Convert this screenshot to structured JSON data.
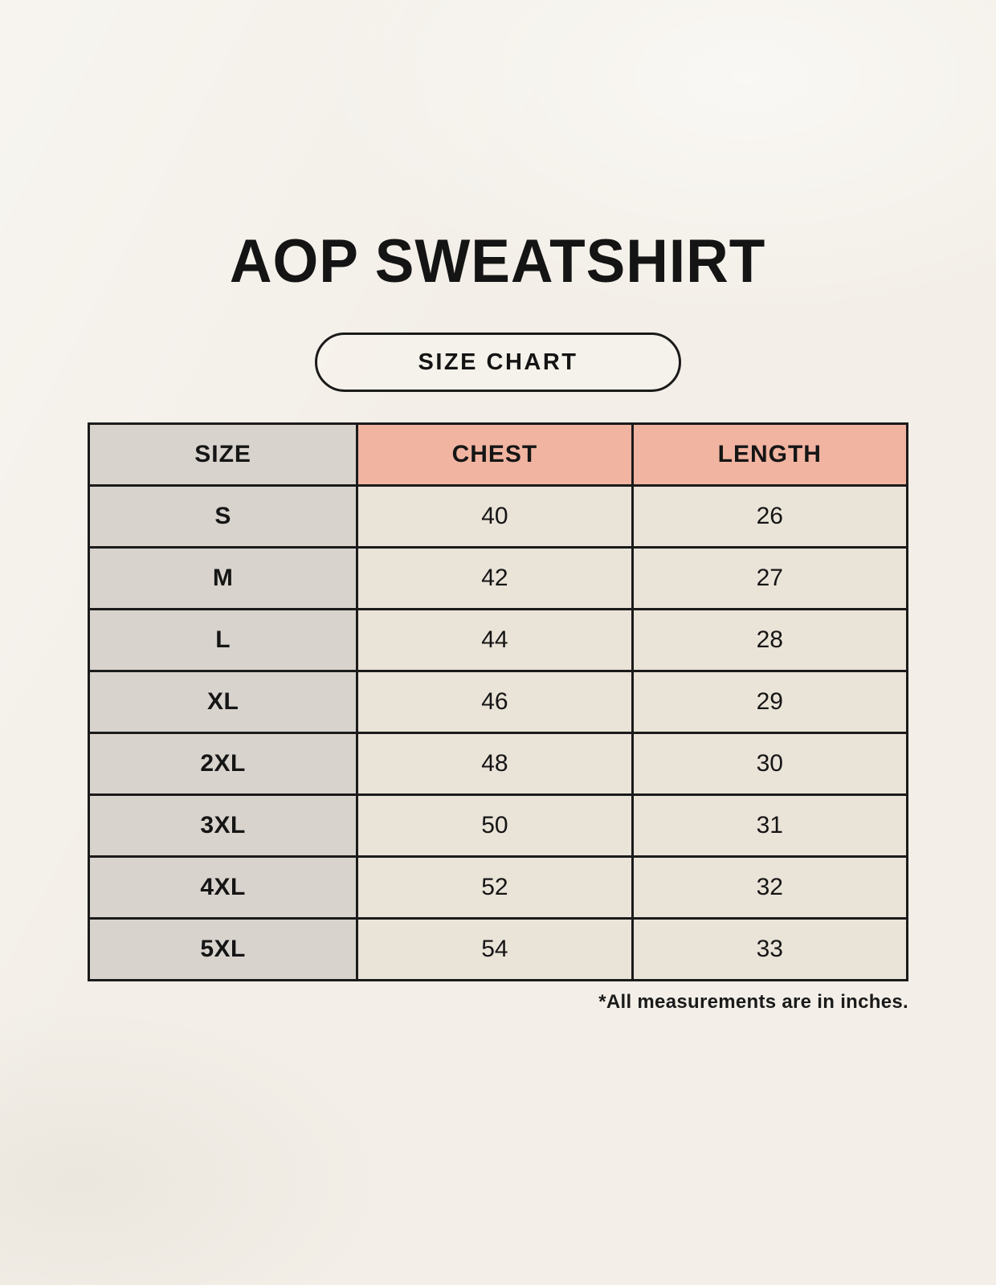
{
  "page": {
    "title": "AOP SWEATSHIRT",
    "badge_label": "SIZE CHART",
    "footnote": "*All measurements are in inches."
  },
  "colors": {
    "background": "#f3efe8",
    "size_column": "#d9d3ce",
    "header_accent": "#f0b4a1",
    "value_cell": "#eae3d8",
    "border": "#1b1b1b",
    "text": "#141414"
  },
  "chart_data": {
    "type": "table",
    "title": "AOP SWEATSHIRT",
    "subtitle": "SIZE CHART",
    "columns": [
      "SIZE",
      "CHEST",
      "LENGTH"
    ],
    "rows": [
      [
        "S",
        "40",
        "26"
      ],
      [
        "M",
        "42",
        "27"
      ],
      [
        "L",
        "44",
        "28"
      ],
      [
        "XL",
        "46",
        "29"
      ],
      [
        "2XL",
        "48",
        "30"
      ],
      [
        "3XL",
        "50",
        "31"
      ],
      [
        "4XL",
        "52",
        "32"
      ],
      [
        "5XL",
        "54",
        "33"
      ]
    ],
    "note": "*All measurements are in inches.",
    "units": "inches"
  }
}
